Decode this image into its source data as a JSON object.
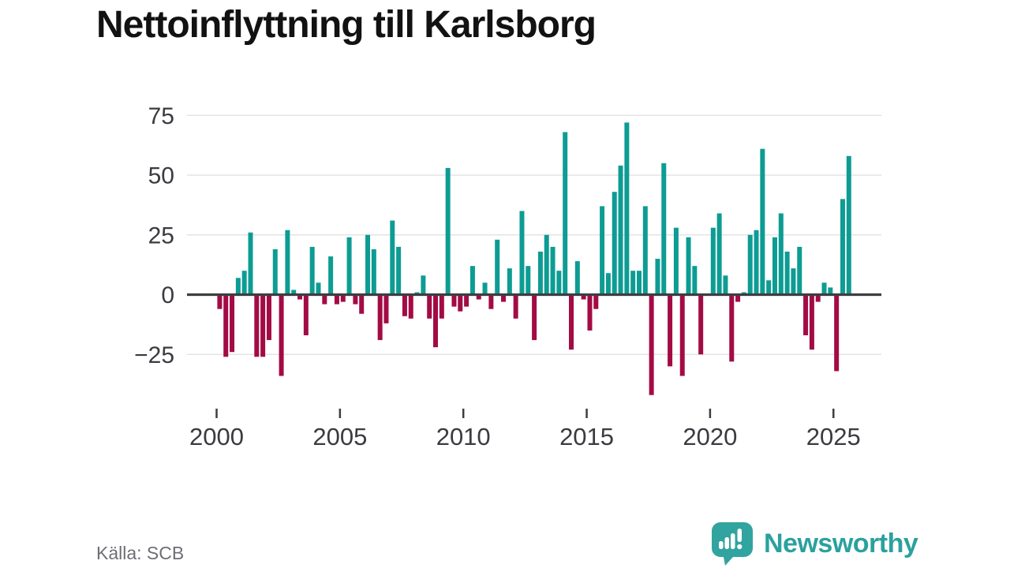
{
  "title": "Nettoinflyttning till Karlsborg",
  "source": "Källa: SCB",
  "brand": {
    "name": "Newsworthy",
    "logo_icon": "speech-bubble-bar-chart-icon"
  },
  "colors": {
    "positive": "#0d9c93",
    "negative": "#a30b45",
    "axis": "#3d3d42",
    "grid": "#e4e4e4",
    "tick_text": "#3a3a40",
    "title_text": "#121212",
    "source_text": "#6e6e76",
    "brand_teal": "#2ba19e",
    "logo_fill": "#31a49f"
  },
  "chart_data": {
    "type": "bar",
    "title": "Nettoinflyttning till Karlsborg",
    "x_unit": "quarter",
    "start_year": 2000,
    "start_quarter": 1,
    "end": "2025Q3",
    "grid": true,
    "legend": "none",
    "ylim": [
      -45,
      80
    ],
    "y_ticks": [
      75,
      50,
      25,
      0,
      -25
    ],
    "y_tick_labels": [
      "75",
      "50",
      "25",
      "0",
      "−25"
    ],
    "x_tick_years": [
      2000,
      2005,
      2010,
      2015,
      2020,
      2025
    ],
    "x_tick_labels": [
      "2000",
      "2005",
      "2010",
      "2015",
      "2020",
      "2025"
    ],
    "series": [
      {
        "name": "Nettoinflyttning",
        "values": [
          -6,
          -26,
          -24,
          7,
          10,
          26,
          -26,
          -26,
          -19,
          19,
          -34,
          27,
          2,
          -2,
          -17,
          20,
          5,
          -4,
          16,
          -4,
          -3,
          24,
          -4,
          -8,
          25,
          19,
          -19,
          -12,
          31,
          20,
          -9,
          -10,
          1,
          8,
          -10,
          -22,
          -10,
          53,
          -5,
          -7,
          -5,
          12,
          -2,
          5,
          -6,
          23,
          -3,
          11,
          -10,
          35,
          12,
          -19,
          18,
          25,
          20,
          10,
          68,
          -23,
          14,
          -2,
          -15,
          -6,
          37,
          9,
          43,
          54,
          72,
          10,
          10,
          37,
          -42,
          15,
          55,
          -30,
          28,
          -34,
          24,
          12,
          -25,
          0,
          28,
          34,
          8,
          -28,
          -3,
          1,
          25,
          27,
          61,
          6,
          24,
          34,
          18,
          11,
          20,
          -17,
          -23,
          -3,
          5,
          3,
          -32,
          40,
          58
        ]
      }
    ]
  }
}
